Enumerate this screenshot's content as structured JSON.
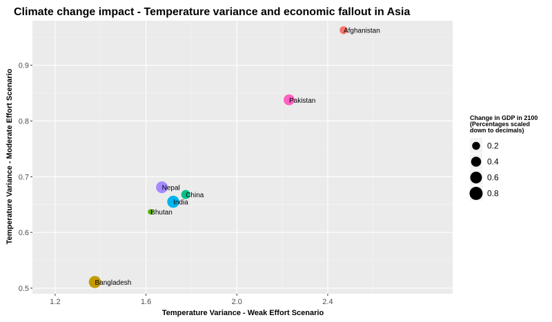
{
  "chart_data": {
    "type": "scatter",
    "title": "Climate change impact - Temperature variance and economic fallout in Asia",
    "xlabel": "Temperature Variance - Weak Effort Scenario",
    "ylabel": "Temperature Variance - Moderate Effort Scenario",
    "xlim": [
      1.1,
      2.95
    ],
    "ylim": [
      0.49,
      0.98
    ],
    "x_ticks": [
      1.2,
      1.6,
      2.0,
      2.4
    ],
    "x_tick_labels": [
      "1.2",
      "1.6",
      "2.0",
      "2.4"
    ],
    "y_ticks": [
      0.5,
      0.6,
      0.7,
      0.8,
      0.9
    ],
    "y_tick_labels": [
      "0.5",
      "0.6",
      "0.7",
      "0.8",
      "0.9"
    ],
    "grid": true,
    "legend": {
      "title_lines": [
        "Change in GDP in 2100",
        "(Percentages scaled",
        " down to decimals)"
      ],
      "placement": "right",
      "size_values": [
        0.2,
        0.4,
        0.6,
        0.8
      ],
      "labels": [
        "0.2",
        "0.4",
        "0.6",
        "0.8"
      ]
    },
    "points": [
      {
        "name": "Afghanistan",
        "x": 2.47,
        "y": 0.963,
        "size": 0.2,
        "color": "#F8766D"
      },
      {
        "name": "Pakistan",
        "x": 2.23,
        "y": 0.838,
        "size": 0.5,
        "color": "#FF61C3"
      },
      {
        "name": "Nepal",
        "x": 1.67,
        "y": 0.681,
        "size": 0.6,
        "color": "#A58AFF"
      },
      {
        "name": "China",
        "x": 1.775,
        "y": 0.668,
        "size": 0.3,
        "color": "#00C08B"
      },
      {
        "name": "India",
        "x": 1.72,
        "y": 0.655,
        "size": 0.65,
        "color": "#00B4F0"
      },
      {
        "name": "Bhutan",
        "x": 1.62,
        "y": 0.637,
        "size": 0.05,
        "color": "#53B400"
      },
      {
        "name": "Bangladesh",
        "x": 1.375,
        "y": 0.511,
        "size": 0.65,
        "color": "#C49A00"
      }
    ]
  }
}
